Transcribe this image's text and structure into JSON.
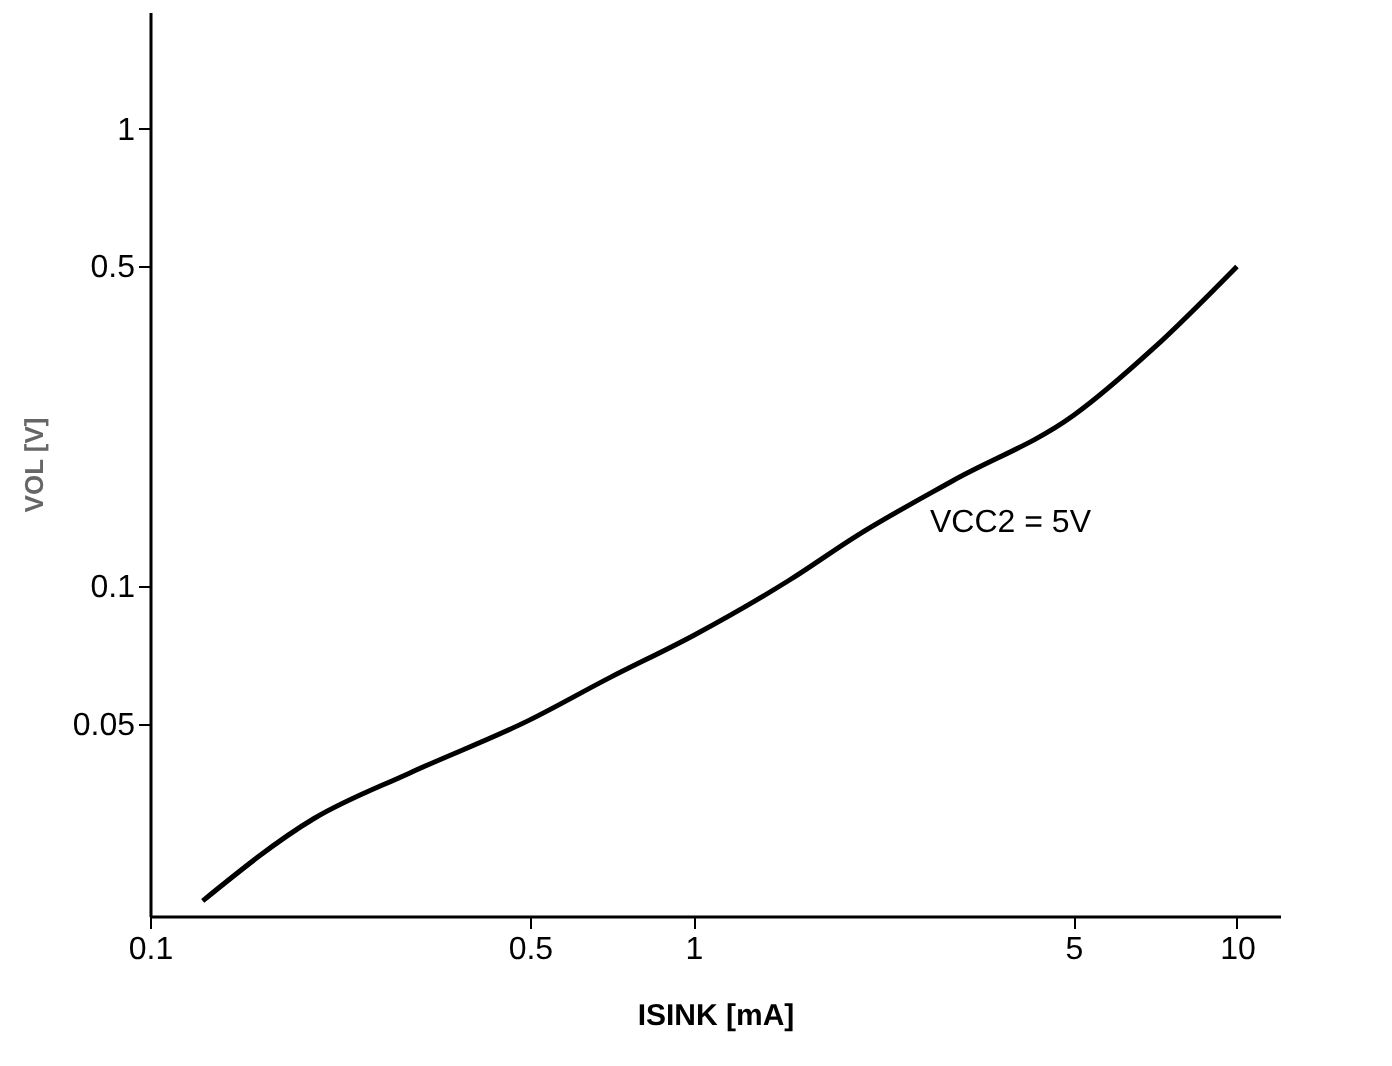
{
  "chart_data": {
    "type": "line",
    "xlabel": "ISINK [mA]",
    "ylabel": "VOL [V]",
    "log": "xy",
    "grid": false,
    "marker": "none",
    "line_style": "solid",
    "xlim": [
      0.1,
      12
    ],
    "xticks": [
      0.1,
      0.5,
      1,
      5,
      10
    ],
    "ylim": [
      0.019,
      1.8
    ],
    "yticks": [
      0.05,
      0.1,
      0.5,
      1
    ],
    "series": [
      {
        "color": "#000000",
        "x": [
          0.125,
          0.2,
          0.3,
          0.5,
          0.7,
          1,
          1.5,
          2,
          3,
          5,
          7,
          10
        ],
        "values": [
          0.0205,
          0.031,
          0.039,
          0.051,
          0.063,
          0.078,
          0.103,
          0.129,
          0.17,
          0.236,
          0.33,
          0.5
        ]
      }
    ],
    "annotations": [
      "VCC2 = 5V"
    ]
  }
}
